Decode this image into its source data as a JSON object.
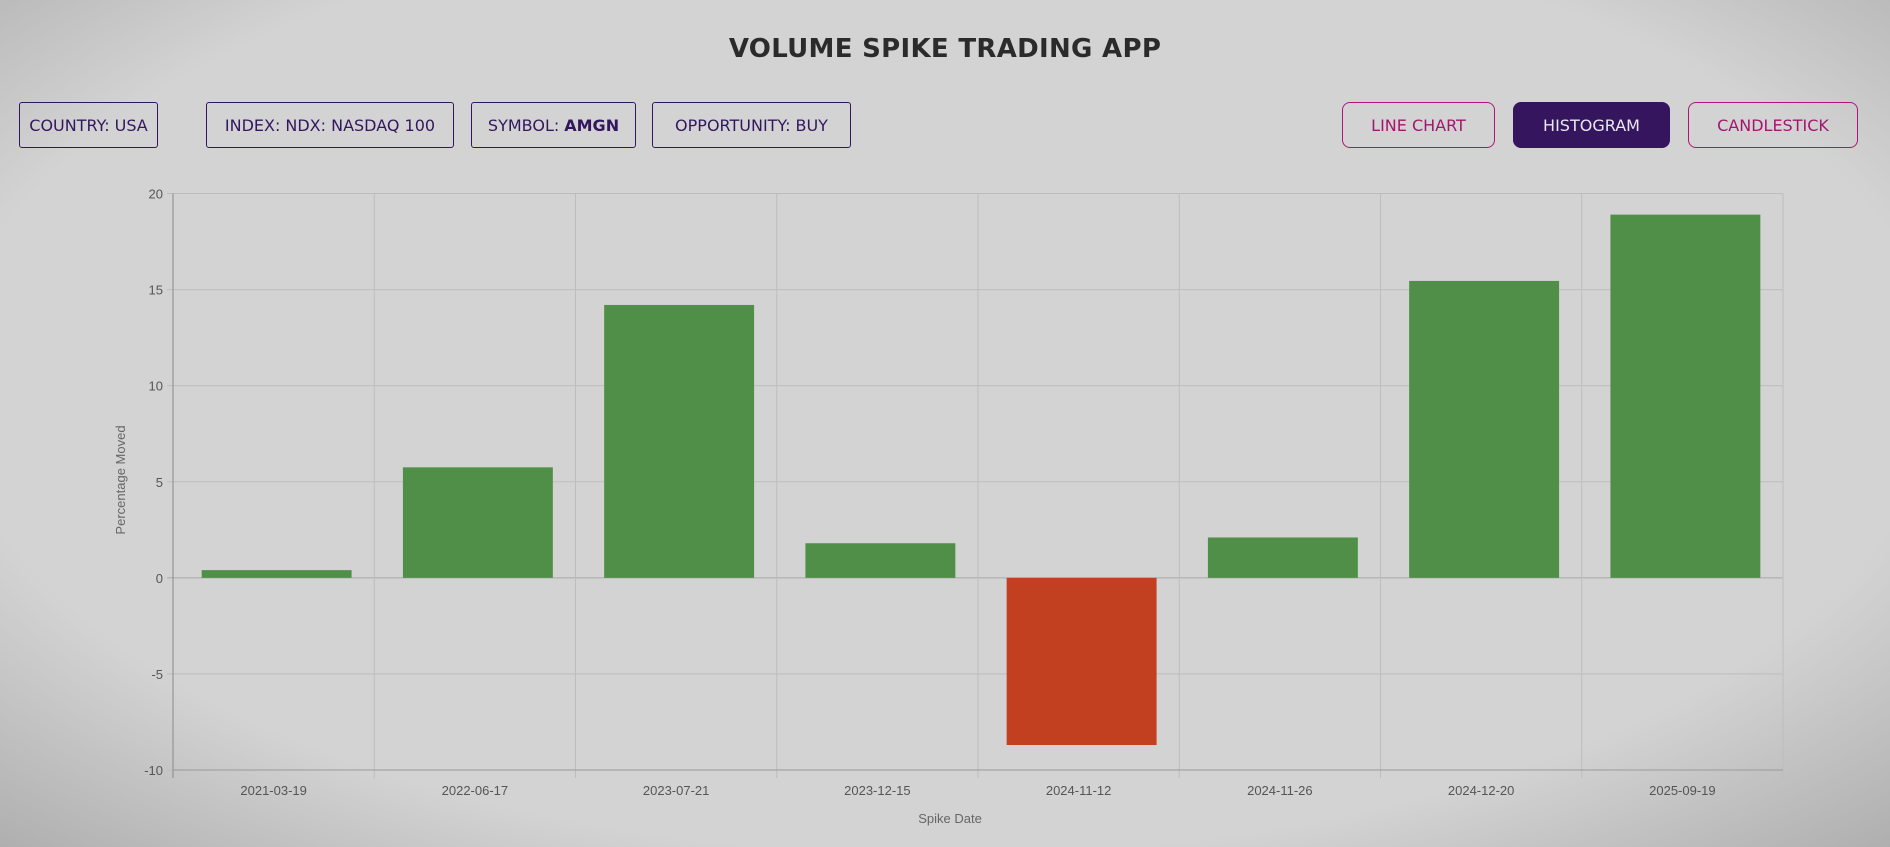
{
  "header": {
    "title": "VOLUME SPIKE TRADING APP"
  },
  "filters": [
    {
      "label": "COUNTRY:",
      "value": "USA"
    },
    {
      "label": "INDEX:",
      "value": "NDX: NASDAQ 100"
    },
    {
      "label": "SYMBOL:",
      "value": "AMGN"
    },
    {
      "label": "OPPORTUNITY:",
      "value": "BUY"
    }
  ],
  "chart_types": [
    {
      "label": "LINE CHART",
      "active": false
    },
    {
      "label": "HISTOGRAM",
      "active": true
    },
    {
      "label": "CANDLESTICK",
      "active": false
    }
  ],
  "colors": {
    "positive": "#4f8f47",
    "negative": "#c2401f",
    "accent": "#35155d",
    "secondary": "#b0147a"
  },
  "chart_data": {
    "type": "bar",
    "categories": [
      "2021-03-19",
      "2022-06-17",
      "2023-07-21",
      "2023-12-15",
      "2024-11-12",
      "2024-11-26",
      "2024-12-20",
      "2025-09-19"
    ],
    "values": [
      0.4,
      5.75,
      14.2,
      1.8,
      -8.7,
      2.1,
      15.45,
      18.9
    ],
    "xlabel": "Spike Date",
    "ylabel": "Percentage Moved",
    "ylim": [
      -10,
      20
    ],
    "yticks": [
      20,
      15,
      10,
      5,
      0,
      -5,
      -10
    ],
    "grid": true
  }
}
